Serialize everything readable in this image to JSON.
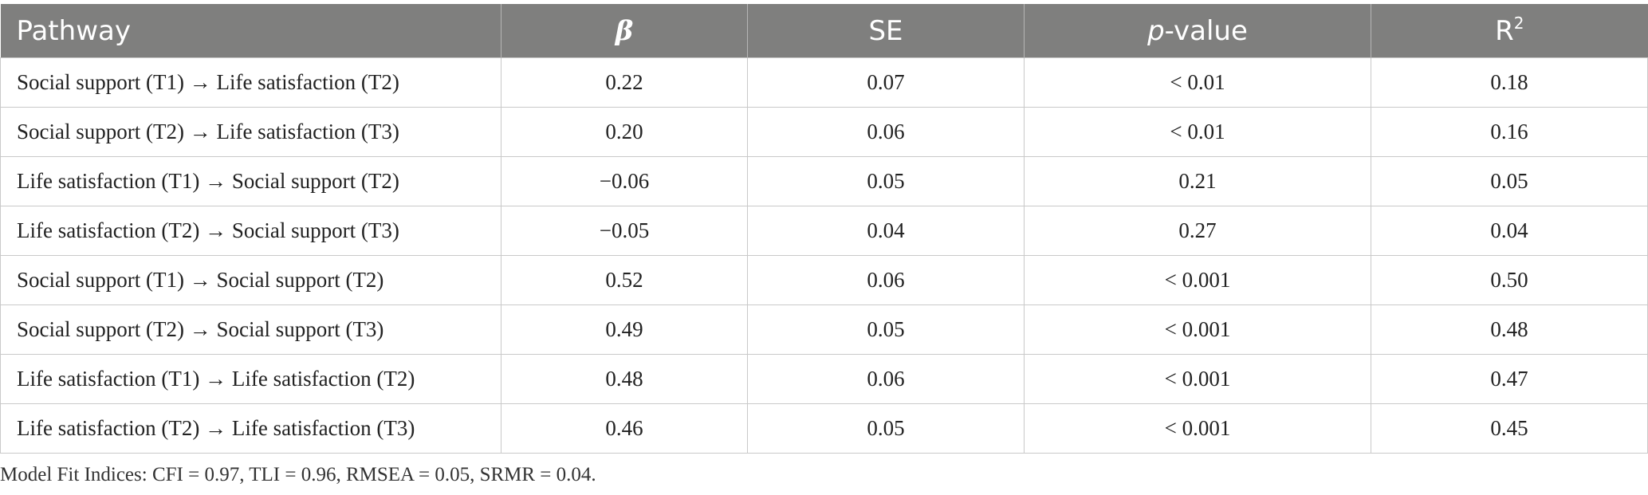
{
  "table": {
    "headers": {
      "pathway": "Pathway",
      "beta": "β",
      "se": "SE",
      "p_italic": "p",
      "p_rest": "-value",
      "r": "R",
      "r_sup": "2"
    },
    "rows": [
      {
        "pathway": "Social support (T1) → Life satisfaction (T2)",
        "beta": "0.22",
        "se": "0.07",
        "p": "< 0.01",
        "r2": "0.18"
      },
      {
        "pathway": "Social support (T2) → Life satisfaction (T3)",
        "beta": "0.20",
        "se": "0.06",
        "p": "< 0.01",
        "r2": "0.16"
      },
      {
        "pathway": "Life satisfaction (T1) → Social support (T2)",
        "beta": "−0.06",
        "se": "0.05",
        "p": "0.21",
        "r2": "0.05"
      },
      {
        "pathway": "Life satisfaction (T2) → Social support (T3)",
        "beta": "−0.05",
        "se": "0.04",
        "p": "0.27",
        "r2": "0.04"
      },
      {
        "pathway": "Social support (T1) → Social support (T2)",
        "beta": "0.52",
        "se": "0.06",
        "p": "< 0.001",
        "r2": "0.50"
      },
      {
        "pathway": "Social support (T2) → Social support (T3)",
        "beta": "0.49",
        "se": "0.05",
        "p": "< 0.001",
        "r2": "0.48"
      },
      {
        "pathway": "Life satisfaction (T1) → Life satisfaction (T2)",
        "beta": "0.48",
        "se": "0.06",
        "p": "< 0.001",
        "r2": "0.47"
      },
      {
        "pathway": "Life satisfaction (T2) → Life satisfaction (T3)",
        "beta": "0.46",
        "se": "0.05",
        "p": "< 0.001",
        "r2": "0.45"
      }
    ]
  },
  "note": "Model Fit Indices: CFI = 0.97, TLI = 0.96, RMSEA = 0.05, SRMR = 0.04.",
  "colors": {
    "header_bg": "#7f7f7e",
    "header_text": "#ffffff",
    "grid": "#c9c9c9"
  }
}
